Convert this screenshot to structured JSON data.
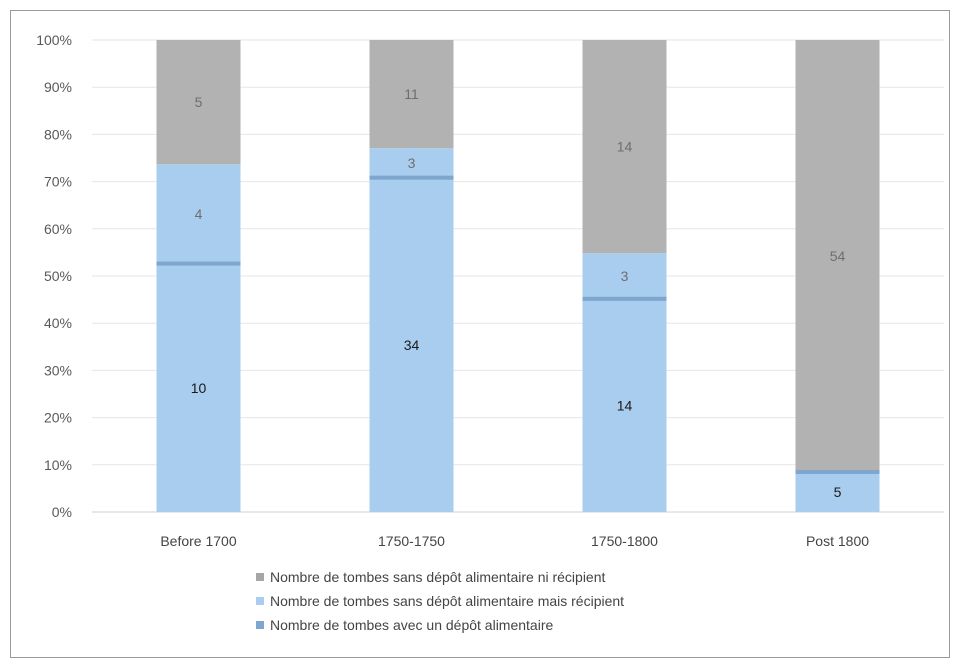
{
  "chart_data": {
    "type": "bar",
    "stacked": true,
    "normalized": true,
    "categories": [
      "Before 1700",
      "1750-1750",
      "1750-1800",
      "Post 1800"
    ],
    "series": [
      {
        "name": "Nombre de tombes avec un dépôt alimentaire",
        "values": [
          0,
          0,
          0,
          0
        ],
        "color": "#7ea6cf"
      },
      {
        "name": "Nombre de tombes sans dépôt alimentaire mais récipient",
        "values": [
          10,
          34,
          14,
          5
        ],
        "color": "#a9cdee"
      },
      {
        "name": "Nombre de tombes sans dépôt alimentaire mais récipient",
        "values": [
          4,
          3,
          3,
          0
        ],
        "color": "#a9cdee"
      },
      {
        "name": "Nombre de tombes sans dépôt alimentaire ni récipient",
        "values": [
          5,
          11,
          14,
          54
        ],
        "color": "#b2b2b2"
      }
    ],
    "y_ticks": [
      "0%",
      "10%",
      "20%",
      "30%",
      "40%",
      "50%",
      "60%",
      "70%",
      "80%",
      "90%",
      "100%"
    ],
    "ylim": [
      0,
      100
    ],
    "grid": true,
    "legend_position": "bottom",
    "legend": [
      {
        "label": "Nombre de tombes sans dépôt alimentaire ni récipient",
        "color": "#a6a6a6"
      },
      {
        "label": "Nombre de tombes sans dépôt alimentaire mais récipient",
        "color": "#a9cdee"
      },
      {
        "label": "Nombre de tombes avec un dépôt alimentaire",
        "color": "#7ea6cf"
      }
    ]
  }
}
